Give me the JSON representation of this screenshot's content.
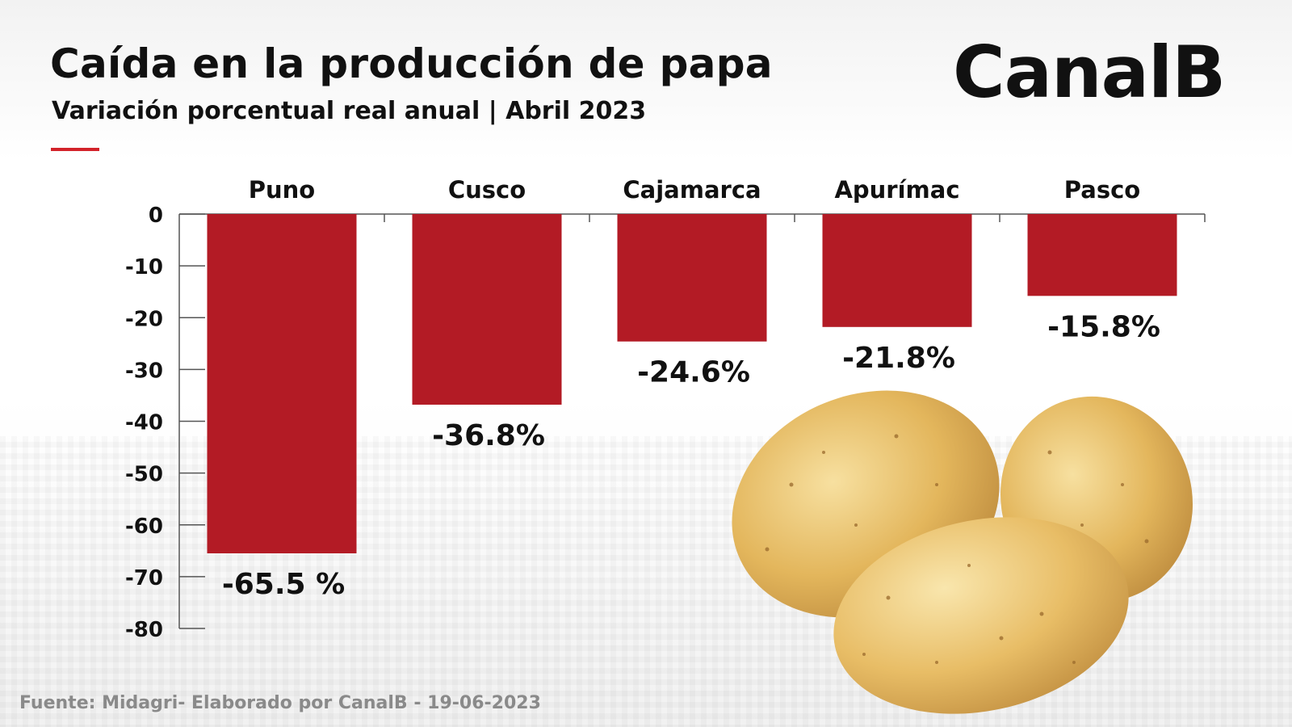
{
  "header": {
    "title": "Caída en la producción de papa",
    "subtitle": "Variación porcentual real anual | Abril 2023",
    "brand": "CanalB"
  },
  "footer": {
    "source": "Fuente: Midagri- Elaborado por CanalB - 19-06-2023"
  },
  "colors": {
    "bar": "#b31b25",
    "accent_line": "#d3222a",
    "axis": "#555555",
    "text": "#111111"
  },
  "chart_data": {
    "type": "bar",
    "categories": [
      "Puno",
      "Cusco",
      "Cajamarca",
      "Apurímac",
      "Pasco"
    ],
    "values": [
      -65.5,
      -36.8,
      -24.6,
      -21.8,
      -15.8
    ],
    "data_labels": [
      "-65.5 %",
      "-36.8%",
      "-24.6%",
      "-21.8%",
      "-15.8%"
    ],
    "yticks": [
      0,
      -10,
      -20,
      -30,
      -40,
      -50,
      -60,
      -70,
      -80
    ],
    "ylim": [
      -80,
      0
    ],
    "category_axis_position": "top",
    "grid": false,
    "legend": "none"
  },
  "illustration": {
    "icon": "potatoes-illustration"
  }
}
